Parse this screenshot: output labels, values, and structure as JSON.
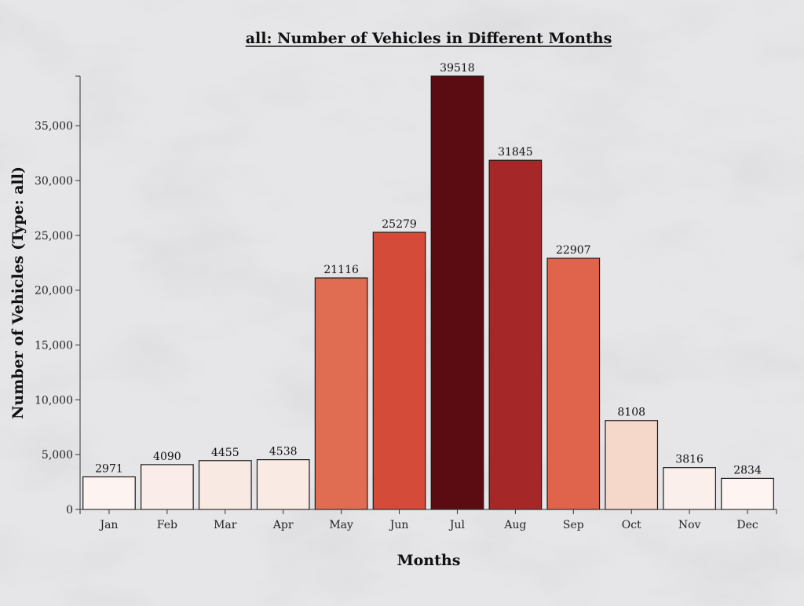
{
  "chart_data": {
    "type": "bar",
    "title": "all: Number of Vehicles in Different Months",
    "xlabel": "Months",
    "ylabel": "Number of Vehicles (Type: all)",
    "categories": [
      "Jan",
      "Feb",
      "Mar",
      "Apr",
      "May",
      "Jun",
      "Jul",
      "Aug",
      "Sep",
      "Oct",
      "Nov",
      "Dec"
    ],
    "values": [
      2971,
      4090,
      4455,
      4538,
      21116,
      25279,
      39518,
      31845,
      22907,
      8108,
      3816,
      2834
    ],
    "data_labels": [
      "2971",
      "4090",
      "4455",
      "4538",
      "21116",
      "25279",
      "39518",
      "31845",
      "22907",
      "8108",
      "3816",
      "2834"
    ],
    "bar_colors": [
      "#fdf3f1",
      "#faece8",
      "#f9e9e3",
      "#f9eae4",
      "#e06c52",
      "#d44b3a",
      "#5a0c12",
      "#a62728",
      "#e0634b",
      "#f6d8cb",
      "#fbefeb",
      "#fef5f3"
    ],
    "yticks": [
      0,
      5000,
      10000,
      15000,
      20000,
      25000,
      30000,
      35000
    ],
    "ytick_labels": [
      "0",
      "5,000",
      "10,000",
      "15,000",
      "20,000",
      "25,000",
      "30,000",
      "35,000"
    ],
    "ylim": [
      0,
      39518
    ],
    "grid": false,
    "legend": "none"
  }
}
